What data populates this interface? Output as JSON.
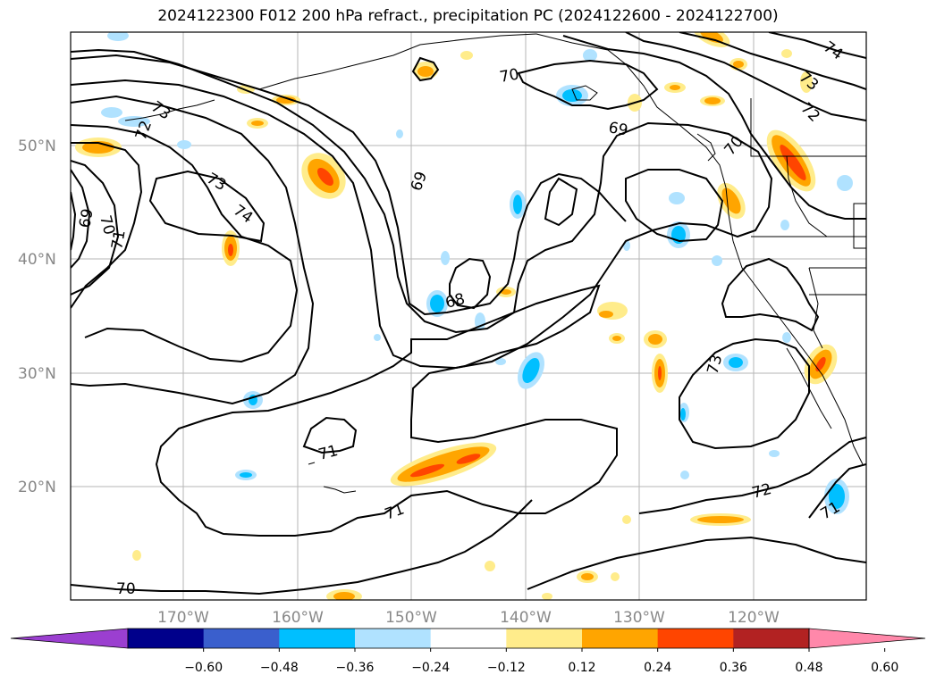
{
  "title": "2024122300 F012 200 hPa refract., precipitation PC (2024122600 - 2024122700)",
  "lat_ticks": [
    "50°N",
    "40°N",
    "30°N",
    "20°N"
  ],
  "lon_ticks": [
    "170°W",
    "160°W",
    "150°W",
    "140°W",
    "130°W",
    "120°W"
  ],
  "colorbar": {
    "ticks": [
      "−0.60",
      "−0.48",
      "−0.36",
      "−0.24",
      "−0.12",
      "0.12",
      "0.24",
      "0.36",
      "0.48",
      "0.60"
    ],
    "colors": [
      "#9b3fd0",
      "#00008b",
      "#3a5fcd",
      "#00bfff",
      "#b0e2ff",
      "#ffffff",
      "#ffec8b",
      "#ffa500",
      "#ff4500",
      "#b22222",
      "#ff88aa"
    ]
  },
  "contour_labels": [
    "73",
    "72",
    "73",
    "74",
    "69",
    "70",
    "71",
    "69",
    "70",
    "68",
    "71",
    "71",
    "70",
    "73",
    "72",
    "71",
    "70",
    "69",
    "74",
    "73",
    "72"
  ],
  "colors": {
    "grid": "#b5b5b5",
    "contour": "#000000",
    "frame": "#000000"
  }
}
